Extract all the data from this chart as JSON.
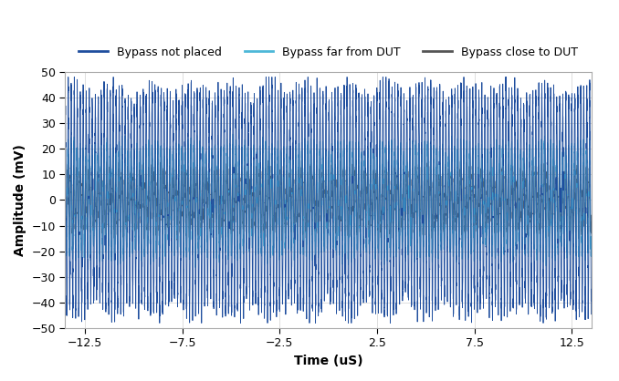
{
  "title": "",
  "xlabel": "Time (uS)",
  "ylabel": "Amplitude (mV)",
  "xlim": [
    -13.5,
    13.5
  ],
  "ylim": [
    -50,
    50
  ],
  "xticks": [
    -12.5,
    -7.5,
    -2.5,
    2.5,
    7.5,
    12.5
  ],
  "yticks": [
    -50,
    -40,
    -30,
    -20,
    -10,
    0,
    10,
    20,
    30,
    40,
    50
  ],
  "legend": [
    {
      "label": "Bypass not placed",
      "color": "#1F4E9E",
      "lw": 0.6
    },
    {
      "label": "Bypass far from DUT",
      "color": "#4DB8D8",
      "lw": 0.6
    },
    {
      "label": "Bypass close to DUT",
      "color": "#555555",
      "lw": 0.6
    }
  ],
  "amp1": 43,
  "amp2": 21,
  "amp3": 12,
  "freq_main": 156.25,
  "t_start": -13.5,
  "t_end": 13.5,
  "num_points": 8000,
  "background_color": "#ffffff",
  "grid_color": "#d0d0d0",
  "xlabel_fontsize": 10,
  "ylabel_fontsize": 10
}
